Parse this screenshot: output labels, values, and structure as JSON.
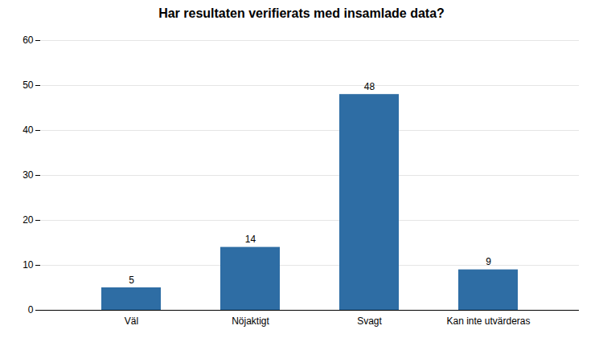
{
  "chart_data": {
    "type": "bar",
    "title": "Har resultaten verifierats med insamlade data?",
    "categories": [
      "Väl",
      "Nöjaktigt",
      "Svagt",
      "Kan inte utvärderas"
    ],
    "values": [
      5,
      14,
      48,
      9
    ],
    "color": "#2E6DA4",
    "ylim": [
      0,
      60
    ],
    "yticks": [
      0,
      10,
      20,
      30,
      40,
      50,
      60
    ],
    "grid": true,
    "data_labels": true
  }
}
